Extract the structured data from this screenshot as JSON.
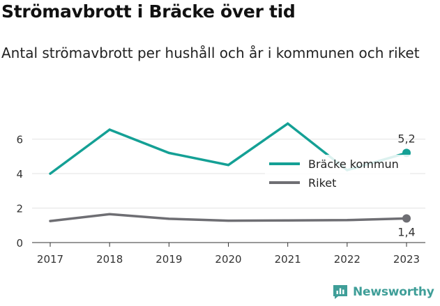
{
  "title": "Strömavbrott i Bräcke över tid",
  "subtitle": "Antal strömavbrott per hushåll och år i kommunen och riket",
  "brand": {
    "name": "Newsworthy",
    "icon": "newsworthy-logo-icon",
    "color": "#3f9e98"
  },
  "chart_data": {
    "type": "line",
    "x": [
      "2017",
      "2018",
      "2019",
      "2020",
      "2021",
      "2022",
      "2023"
    ],
    "yticks": [
      "0",
      "2",
      "4",
      "6"
    ],
    "ylim": [
      0,
      7.6
    ],
    "grid": true,
    "legend_position": "top-right",
    "series": [
      {
        "name": "Bräcke kommun",
        "color": "#14a095",
        "values": [
          4.0,
          6.55,
          5.2,
          4.5,
          6.9,
          4.2,
          5.2
        ],
        "end_label": "5,2"
      },
      {
        "name": "Riket",
        "color": "#6e6e73",
        "values": [
          1.25,
          1.65,
          1.38,
          1.27,
          1.28,
          1.3,
          1.4
        ],
        "end_label": "1,4"
      }
    ]
  }
}
